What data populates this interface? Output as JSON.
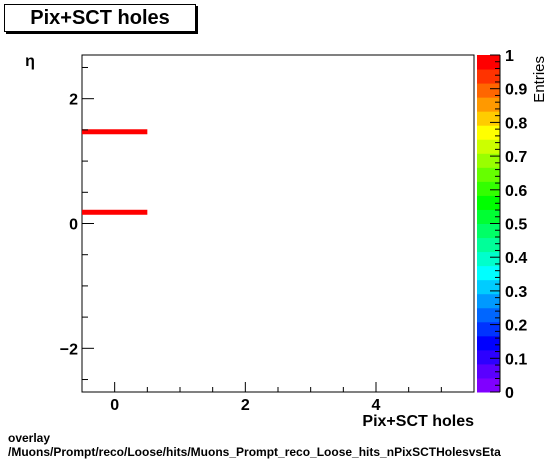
{
  "chart_data": {
    "type": "heatmap",
    "title": "Pix+SCT holes",
    "xlabel": "Pix+SCT holes",
    "ylabel": "η",
    "zlabel": "Entries",
    "xlim": [
      -0.5,
      5.5
    ],
    "ylim": [
      -2.7,
      2.7
    ],
    "zlim": [
      0,
      1
    ],
    "x_ticks": [
      0,
      2,
      4
    ],
    "x_tick_labels": [
      "0",
      "2",
      "4"
    ],
    "y_ticks": [
      -2,
      0,
      2
    ],
    "y_tick_labels": [
      "−2",
      "0",
      "2"
    ],
    "z_tick_labels": [
      "0",
      "0.1",
      "0.2",
      "0.3",
      "0.4",
      "0.5",
      "0.6",
      "0.7",
      "0.8",
      "0.9",
      "1"
    ],
    "z_ticks": [
      0,
      0.1,
      0.2,
      0.3,
      0.4,
      0.5,
      0.6,
      0.7,
      0.8,
      0.9,
      1
    ],
    "cells": [
      {
        "x0": -0.5,
        "x1": 0.5,
        "y0": 1.43,
        "y1": 1.51,
        "z": 1
      },
      {
        "x0": -0.5,
        "x1": 0.5,
        "y0": 0.14,
        "y1": 0.22,
        "z": 1
      }
    ],
    "palette": [
      "#8000ff",
      "#5a00ff",
      "#2d00ff",
      "#0000ff",
      "#0033ff",
      "#0066ff",
      "#0099ff",
      "#00ccff",
      "#00ffff",
      "#00ffcc",
      "#00ff99",
      "#00ff66",
      "#00ff33",
      "#00ff00",
      "#33ff00",
      "#66ff00",
      "#99ff00",
      "#ccff00",
      "#ffff00",
      "#ffcc00",
      "#ff9900",
      "#ff6600",
      "#ff3300",
      "#ff0000"
    ]
  },
  "caption_line1": "overlay",
  "caption_line2": "/Muons/Prompt/reco/Loose/hits/Muons_Prompt_reco_Loose_hits_nPixSCTHolesvsEta"
}
